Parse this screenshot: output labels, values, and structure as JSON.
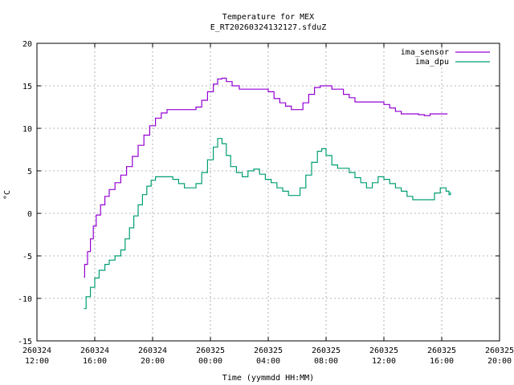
{
  "chart_data": {
    "type": "line",
    "title": "Temperature for MEX",
    "subtitle": "E_RT20260324132127.sfduZ",
    "xlabel": "Time (yymmdd HH:MM)",
    "ylabel": "°C",
    "xlim_hours": [
      0,
      32
    ],
    "ylim": [
      -15,
      20
    ],
    "grid": true,
    "legend_position": "top-right",
    "x_ticks": [
      {
        "hours": 0,
        "date": "260324",
        "time": "12:00"
      },
      {
        "hours": 4,
        "date": "260324",
        "time": "16:00"
      },
      {
        "hours": 8,
        "date": "260324",
        "time": "20:00"
      },
      {
        "hours": 12,
        "date": "260325",
        "time": "00:00"
      },
      {
        "hours": 16,
        "date": "260325",
        "time": "04:00"
      },
      {
        "hours": 20,
        "date": "260325",
        "time": "08:00"
      },
      {
        "hours": 24,
        "date": "260325",
        "time": "12:00"
      },
      {
        "hours": 28,
        "date": "260325",
        "time": "16:00"
      },
      {
        "hours": 32,
        "date": "260325",
        "time": "20:00"
      }
    ],
    "y_ticks": [
      -15,
      -10,
      -5,
      0,
      5,
      10,
      15,
      20
    ],
    "series": [
      {
        "name": "ima_sensor",
        "color": "#9400d3",
        "points": [
          [
            3.25,
            -7.5
          ],
          [
            3.3,
            -6.0
          ],
          [
            3.5,
            -4.5
          ],
          [
            3.7,
            -3.0
          ],
          [
            3.9,
            -1.5
          ],
          [
            4.1,
            -0.2
          ],
          [
            4.4,
            1.0
          ],
          [
            4.7,
            2.0
          ],
          [
            5.0,
            2.8
          ],
          [
            5.4,
            3.6
          ],
          [
            5.8,
            4.5
          ],
          [
            6.2,
            5.5
          ],
          [
            6.6,
            6.7
          ],
          [
            7.0,
            8.0
          ],
          [
            7.4,
            9.2
          ],
          [
            7.8,
            10.3
          ],
          [
            8.2,
            11.2
          ],
          [
            8.6,
            11.8
          ],
          [
            9.0,
            12.2
          ],
          [
            9.5,
            12.2
          ],
          [
            10.0,
            12.2
          ],
          [
            10.5,
            12.2
          ],
          [
            11.0,
            12.5
          ],
          [
            11.4,
            13.3
          ],
          [
            11.8,
            14.3
          ],
          [
            12.2,
            15.2
          ],
          [
            12.5,
            15.8
          ],
          [
            12.8,
            15.9
          ],
          [
            13.1,
            15.5
          ],
          [
            13.5,
            15.0
          ],
          [
            14.0,
            14.6
          ],
          [
            14.5,
            14.6
          ],
          [
            15.0,
            14.6
          ],
          [
            15.5,
            14.6
          ],
          [
            16.0,
            14.3
          ],
          [
            16.4,
            13.5
          ],
          [
            16.8,
            13.0
          ],
          [
            17.2,
            12.6
          ],
          [
            17.6,
            12.2
          ],
          [
            18.0,
            12.2
          ],
          [
            18.4,
            13.0
          ],
          [
            18.8,
            14.0
          ],
          [
            19.2,
            14.8
          ],
          [
            19.6,
            15.0
          ],
          [
            20.0,
            15.0
          ],
          [
            20.4,
            14.6
          ],
          [
            20.8,
            14.6
          ],
          [
            21.2,
            14.0
          ],
          [
            21.6,
            13.6
          ],
          [
            22.0,
            13.1
          ],
          [
            22.5,
            13.1
          ],
          [
            23.0,
            13.1
          ],
          [
            23.5,
            13.1
          ],
          [
            24.0,
            12.8
          ],
          [
            24.4,
            12.4
          ],
          [
            24.8,
            12.0
          ],
          [
            25.2,
            11.7
          ],
          [
            25.6,
            11.7
          ],
          [
            26.0,
            11.7
          ],
          [
            26.4,
            11.6
          ],
          [
            26.8,
            11.5
          ],
          [
            27.2,
            11.7
          ],
          [
            27.6,
            11.7
          ],
          [
            28.0,
            11.7
          ],
          [
            28.4,
            11.7
          ]
        ]
      },
      {
        "name": "ima_dpu",
        "color": "#009e73",
        "points": [
          [
            3.25,
            -11.2
          ],
          [
            3.4,
            -9.8
          ],
          [
            3.7,
            -8.7
          ],
          [
            4.0,
            -7.6
          ],
          [
            4.3,
            -6.7
          ],
          [
            4.7,
            -6.0
          ],
          [
            5.0,
            -5.5
          ],
          [
            5.4,
            -5.0
          ],
          [
            5.8,
            -4.3
          ],
          [
            6.1,
            -3.0
          ],
          [
            6.4,
            -1.7
          ],
          [
            6.7,
            -0.3
          ],
          [
            7.0,
            1.0
          ],
          [
            7.3,
            2.2
          ],
          [
            7.6,
            3.2
          ],
          [
            7.9,
            3.9
          ],
          [
            8.2,
            4.3
          ],
          [
            8.6,
            4.3
          ],
          [
            9.0,
            4.3
          ],
          [
            9.4,
            4.0
          ],
          [
            9.8,
            3.5
          ],
          [
            10.2,
            3.0
          ],
          [
            10.6,
            3.0
          ],
          [
            11.0,
            3.5
          ],
          [
            11.4,
            4.8
          ],
          [
            11.8,
            6.3
          ],
          [
            12.2,
            7.8
          ],
          [
            12.5,
            8.8
          ],
          [
            12.8,
            8.2
          ],
          [
            13.1,
            6.8
          ],
          [
            13.4,
            5.5
          ],
          [
            13.8,
            4.8
          ],
          [
            14.2,
            4.3
          ],
          [
            14.6,
            5.0
          ],
          [
            15.0,
            5.2
          ],
          [
            15.4,
            4.6
          ],
          [
            15.8,
            4.0
          ],
          [
            16.2,
            3.6
          ],
          [
            16.6,
            3.0
          ],
          [
            17.0,
            2.6
          ],
          [
            17.4,
            2.1
          ],
          [
            17.8,
            2.1
          ],
          [
            18.2,
            3.0
          ],
          [
            18.6,
            4.5
          ],
          [
            19.0,
            6.0
          ],
          [
            19.4,
            7.3
          ],
          [
            19.7,
            7.6
          ],
          [
            20.0,
            6.8
          ],
          [
            20.4,
            5.7
          ],
          [
            20.8,
            5.3
          ],
          [
            21.2,
            5.3
          ],
          [
            21.6,
            4.8
          ],
          [
            22.0,
            4.2
          ],
          [
            22.4,
            3.6
          ],
          [
            22.8,
            3.0
          ],
          [
            23.2,
            3.6
          ],
          [
            23.6,
            4.3
          ],
          [
            24.0,
            4.0
          ],
          [
            24.4,
            3.5
          ],
          [
            24.8,
            3.0
          ],
          [
            25.2,
            2.6
          ],
          [
            25.6,
            2.0
          ],
          [
            26.0,
            1.6
          ],
          [
            26.4,
            1.6
          ],
          [
            26.8,
            1.6
          ],
          [
            27.2,
            1.6
          ],
          [
            27.5,
            2.4
          ],
          [
            27.9,
            3.0
          ],
          [
            28.3,
            2.6
          ],
          [
            28.5,
            2.2
          ],
          [
            28.6,
            2.5
          ]
        ]
      }
    ]
  }
}
